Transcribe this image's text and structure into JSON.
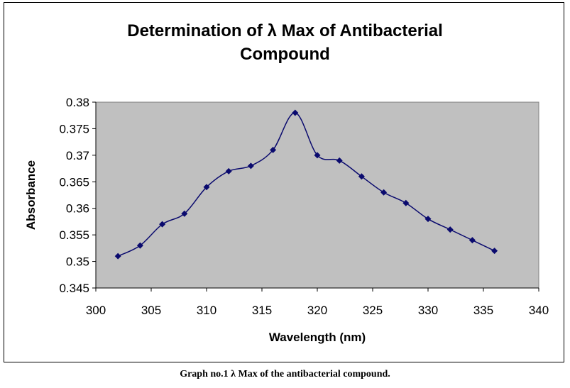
{
  "chart_data": {
    "type": "line",
    "title_line1": "Determination of  λ Max of Antibacterial",
    "title_line2": "Compound",
    "xlabel": "Wavelength (nm)",
    "ylabel": "Absorbance",
    "xlim": [
      300,
      340
    ],
    "ylim": [
      0.345,
      0.38
    ],
    "xticks": [
      300,
      305,
      310,
      315,
      320,
      325,
      330,
      335,
      340
    ],
    "yticks": [
      0.345,
      0.35,
      0.355,
      0.36,
      0.365,
      0.37,
      0.375,
      0.38
    ],
    "xtick_labels": [
      "300",
      "305",
      "310",
      "315",
      "320",
      "325",
      "330",
      "335",
      "340"
    ],
    "ytick_labels": [
      "0.345",
      "0.35",
      "0.355",
      "0.36",
      "0.365",
      "0.37",
      "0.375",
      "0.38"
    ],
    "series": [
      {
        "name": "Absorbance",
        "x": [
          302,
          304,
          306,
          308,
          310,
          312,
          314,
          316,
          318,
          320,
          322,
          324,
          326,
          328,
          330,
          332,
          334,
          336
        ],
        "y": [
          0.351,
          0.353,
          0.357,
          0.359,
          0.364,
          0.367,
          0.368,
          0.371,
          0.378,
          0.37,
          0.369,
          0.366,
          0.363,
          0.361,
          0.358,
          0.356,
          0.354,
          0.352
        ]
      }
    ],
    "colors": {
      "line": "#0a0a6e",
      "marker": "#0a0a6e",
      "plot_bg": "#c0c0c0"
    },
    "grid": false,
    "legend": "none"
  },
  "caption": "Graph no.1 λ Max of the antibacterial compound."
}
